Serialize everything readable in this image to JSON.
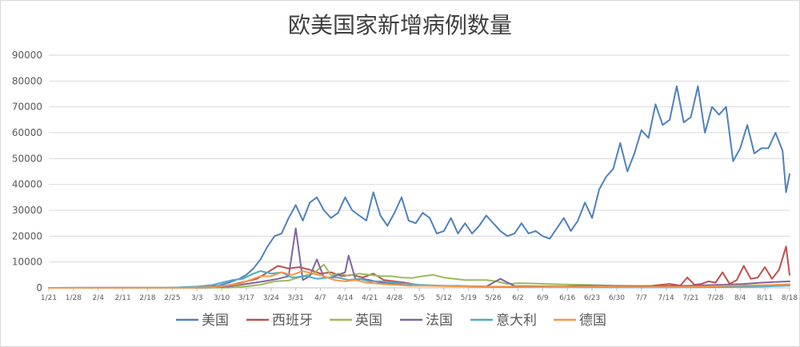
{
  "chart_data": {
    "type": "line",
    "title": "欧美国家新增病例数量",
    "xlabel": "",
    "ylabel": "",
    "ylim": [
      0,
      90000
    ],
    "y_ticks": [
      "0",
      "10000",
      "20000",
      "30000",
      "40000",
      "50000",
      "60000",
      "70000",
      "80000",
      "90000"
    ],
    "x_tick_labels": [
      "1/21",
      "1/28",
      "2/4",
      "2/11",
      "2/18",
      "2/25",
      "3/3",
      "3/10",
      "3/17",
      "3/24",
      "3/31",
      "4/7",
      "4/14",
      "4/21",
      "4/28",
      "5/5",
      "5/12",
      "5/19",
      "5/26",
      "6/2",
      "6/9",
      "6/16",
      "6/23",
      "6/30",
      "7/7",
      "7/14",
      "7/21",
      "7/28",
      "8/4",
      "8/11",
      "8/18"
    ],
    "x_start": "1/21",
    "x_end": "8/18",
    "grid": "horizontal",
    "legend_position": "bottom",
    "series": [
      {
        "name": "美国",
        "color": "#4f81bd",
        "x": [
          "1/21",
          "2/28",
          "3/5",
          "3/9",
          "3/12",
          "3/15",
          "3/17",
          "3/19",
          "3/21",
          "3/23",
          "3/25",
          "3/27",
          "3/29",
          "3/31",
          "4/2",
          "4/4",
          "4/6",
          "4/8",
          "4/10",
          "4/12",
          "4/14",
          "4/16",
          "4/18",
          "4/20",
          "4/22",
          "4/24",
          "4/26",
          "4/28",
          "4/30",
          "5/2",
          "5/4",
          "5/6",
          "5/8",
          "5/10",
          "5/12",
          "5/14",
          "5/16",
          "5/18",
          "5/20",
          "5/22",
          "5/24",
          "5/26",
          "5/28",
          "5/30",
          "6/1",
          "6/3",
          "6/5",
          "6/7",
          "6/9",
          "6/11",
          "6/13",
          "6/15",
          "6/17",
          "6/19",
          "6/21",
          "6/23",
          "6/25",
          "6/27",
          "6/29",
          "7/1",
          "7/3",
          "7/5",
          "7/7",
          "7/9",
          "7/11",
          "7/13",
          "7/15",
          "7/17",
          "7/19",
          "7/21",
          "7/23",
          "7/25",
          "7/27",
          "7/29",
          "7/31",
          "8/2",
          "8/4",
          "8/6",
          "8/8",
          "8/10",
          "8/12",
          "8/14",
          "8/16",
          "8/17",
          "8/18"
        ],
        "values": [
          0,
          0,
          200,
          800,
          2000,
          3500,
          5000,
          7500,
          11000,
          16000,
          20000,
          21000,
          27000,
          32000,
          26000,
          33000,
          35000,
          30000,
          27000,
          29000,
          35000,
          30000,
          28000,
          26000,
          37000,
          28000,
          24000,
          29000,
          35000,
          26000,
          25000,
          29000,
          27000,
          21000,
          22000,
          27000,
          21000,
          25000,
          21000,
          24000,
          28000,
          25000,
          22000,
          20000,
          21000,
          25000,
          21000,
          22000,
          20000,
          19000,
          23000,
          27000,
          22000,
          26000,
          33000,
          27000,
          38000,
          43000,
          46000,
          56000,
          45000,
          52000,
          61000,
          58000,
          71000,
          63000,
          65000,
          78000,
          64000,
          66000,
          78000,
          60000,
          70000,
          67000,
          70000,
          49000,
          54000,
          63000,
          52000,
          54000,
          54000,
          60000,
          53000,
          37000,
          44000
        ]
      },
      {
        "name": "西班牙",
        "color": "#c0504d",
        "x": [
          "1/21",
          "3/5",
          "3/10",
          "3/14",
          "3/17",
          "3/20",
          "3/23",
          "3/26",
          "3/29",
          "4/1",
          "4/4",
          "4/7",
          "4/10",
          "4/13",
          "4/16",
          "4/19",
          "4/22",
          "4/25",
          "4/28",
          "5/1",
          "5/5",
          "5/10",
          "5/15",
          "5/20",
          "5/25",
          "6/1",
          "6/10",
          "6/20",
          "7/1",
          "7/10",
          "7/15",
          "7/18",
          "7/20",
          "7/22",
          "7/24",
          "7/26",
          "7/28",
          "7/30",
          "8/1",
          "8/3",
          "8/5",
          "8/7",
          "8/9",
          "8/11",
          "8/13",
          "8/15",
          "8/17",
          "8/18"
        ],
        "values": [
          0,
          100,
          600,
          1500,
          2500,
          3500,
          6000,
          8500,
          7500,
          8000,
          7000,
          5500,
          6000,
          4500,
          5000,
          4000,
          5500,
          3000,
          2500,
          2000,
          1000,
          800,
          700,
          500,
          400,
          300,
          300,
          400,
          600,
          800,
          1500,
          900,
          4000,
          1200,
          1500,
          2500,
          2000,
          6000,
          1500,
          3000,
          8500,
          3500,
          4000,
          8000,
          3500,
          7000,
          16000,
          5000
        ]
      },
      {
        "name": "英国",
        "color": "#9bbb59",
        "x": [
          "1/21",
          "3/5",
          "3/12",
          "3/17",
          "3/21",
          "3/25",
          "3/29",
          "4/2",
          "4/5",
          "4/8",
          "4/10",
          "4/12",
          "4/15",
          "4/18",
          "4/21",
          "4/24",
          "4/27",
          "4/30",
          "5/3",
          "5/6",
          "5/9",
          "5/12",
          "5/15",
          "5/18",
          "5/21",
          "5/24",
          "5/27",
          "5/30",
          "6/2",
          "6/6",
          "6/10",
          "6/15",
          "6/20",
          "6/25",
          "7/1",
          "7/10",
          "7/20",
          "7/30",
          "8/5",
          "8/10",
          "8/18"
        ],
        "values": [
          0,
          20,
          100,
          600,
          1200,
          2500,
          2800,
          4500,
          5500,
          9000,
          4800,
          5500,
          4700,
          5500,
          5000,
          4500,
          4500,
          4000,
          3800,
          4500,
          5000,
          4000,
          3500,
          3000,
          3000,
          3000,
          2500,
          1500,
          1800,
          1700,
          1500,
          1300,
          1200,
          1000,
          800,
          700,
          700,
          800,
          900,
          1000,
          1100
        ]
      },
      {
        "name": "法国",
        "color": "#8064a2",
        "x": [
          "1/21",
          "3/5",
          "3/12",
          "3/17",
          "3/22",
          "3/26",
          "3/29",
          "3/31",
          "4/2",
          "4/4",
          "4/6",
          "4/8",
          "4/10",
          "4/12",
          "4/14",
          "4/15",
          "4/17",
          "4/19",
          "4/21",
          "4/24",
          "4/28",
          "5/1",
          "5/6",
          "5/12",
          "5/18",
          "5/24",
          "5/28",
          "6/1",
          "6/8",
          "6/15",
          "6/22",
          "7/1",
          "7/10",
          "7/20",
          "7/30",
          "8/5",
          "8/10",
          "8/18"
        ],
        "values": [
          0,
          100,
          600,
          1500,
          2500,
          3500,
          4500,
          23000,
          3000,
          4500,
          11000,
          4000,
          4000,
          5000,
          6000,
          12500,
          3000,
          3500,
          3000,
          2000,
          1500,
          1000,
          900,
          800,
          700,
          500,
          3500,
          700,
          600,
          500,
          800,
          700,
          600,
          800,
          1200,
          1500,
          2000,
          2500
        ]
      },
      {
        "name": "意大利",
        "color": "#4bacc6",
        "x": [
          "1/21",
          "2/25",
          "3/3",
          "3/7",
          "3/10",
          "3/13",
          "3/16",
          "3/19",
          "3/21",
          "3/24",
          "3/27",
          "3/30",
          "4/3",
          "4/6",
          "4/9",
          "4/12",
          "4/15",
          "4/18",
          "4/21",
          "4/25",
          "4/30",
          "5/5",
          "5/10",
          "5/15",
          "5/20",
          "5/30",
          "6/10",
          "6/20",
          "7/1",
          "7/15",
          "7/30",
          "8/10",
          "8/18"
        ],
        "values": [
          0,
          100,
          500,
          1000,
          2000,
          3000,
          3500,
          5500,
          6500,
          5500,
          6000,
          4000,
          4500,
          3500,
          4000,
          4000,
          3000,
          3500,
          2500,
          2500,
          1800,
          1200,
          900,
          700,
          600,
          400,
          300,
          250,
          200,
          200,
          300,
          500,
          900
        ]
      },
      {
        "name": "德国",
        "color": "#f79646",
        "x": [
          "1/21",
          "3/1",
          "3/8",
          "3/12",
          "3/15",
          "3/18",
          "3/21",
          "3/24",
          "3/27",
          "3/30",
          "4/2",
          "4/5",
          "4/8",
          "4/11",
          "4/14",
          "4/17",
          "4/20",
          "4/24",
          "4/28",
          "5/2",
          "5/8",
          "5/15",
          "5/25",
          "6/5",
          "6/15",
          "6/25",
          "7/5",
          "7/15",
          "7/25",
          "8/1",
          "8/10",
          "8/18"
        ],
        "values": [
          0,
          50,
          300,
          1000,
          1500,
          3000,
          4500,
          4500,
          6000,
          5000,
          6500,
          5500,
          4500,
          3000,
          2500,
          3000,
          2000,
          1500,
          1200,
          800,
          800,
          600,
          500,
          400,
          300,
          500,
          400,
          300,
          500,
          800,
          1000,
          1400
        ]
      }
    ]
  }
}
